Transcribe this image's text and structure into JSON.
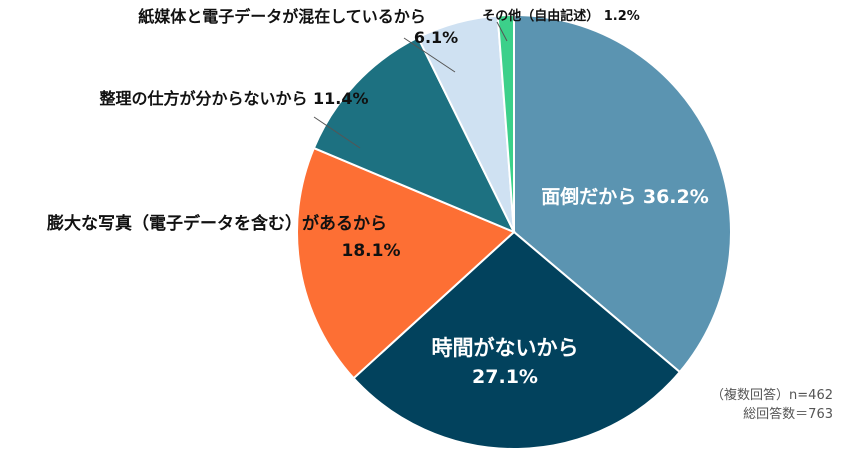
{
  "chart_data": {
    "type": "pie",
    "categories": [
      "面倒だから",
      "時間がないから",
      "膨大な写真（電子データを含む）があるから",
      "整理の仕方が分からないから",
      "紙媒体と電子データが混在しているから",
      "その他（自由記述）"
    ],
    "values": [
      36.2,
      27.1,
      18.1,
      11.4,
      6.1,
      1.2
    ],
    "value_labels": [
      "36.2%",
      "27.1%",
      "18.1%",
      "11.4%",
      "6.1%",
      "1.2%"
    ],
    "colors": [
      "#5b94b1",
      "#02425d",
      "#fd6f34",
      "#1d7181",
      "#cfe1f2",
      "#3cd08a"
    ],
    "start": "12 o'clock",
    "direction": "clockwise"
  },
  "notes": {
    "line1": "（複数回答）n=462",
    "line2": "総回答数＝763"
  }
}
